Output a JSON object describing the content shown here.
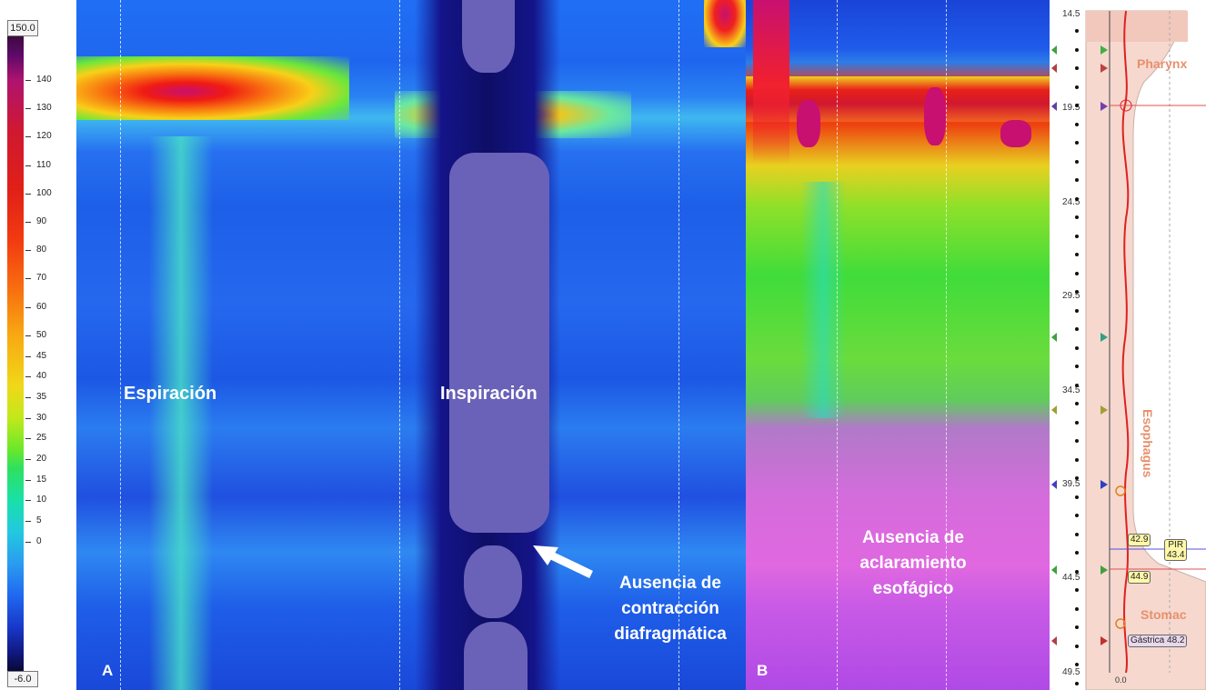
{
  "scale": {
    "max_box": "150.0",
    "min_box": "-6.0",
    "ticks": [
      "140",
      "130",
      "120",
      "110",
      "100",
      "90",
      "80",
      "70",
      "60",
      "50",
      "45",
      "40",
      "35",
      "30",
      "25",
      "20",
      "15",
      "10",
      "5",
      "0"
    ]
  },
  "panel_a": {
    "letter": "A",
    "label_expiration": "Espiración",
    "label_inspiration": "Inspiración",
    "arrow_annotation": [
      "Ausencia de",
      "contracción",
      "diafragmática"
    ]
  },
  "panel_b": {
    "letter": "B",
    "annotation": [
      "Ausencia de",
      "aclaramiento",
      "esofágico"
    ]
  },
  "anatomy": {
    "positions": [
      "14.5",
      "19.5",
      "24.5",
      "29.5",
      "34.5",
      "39.5",
      "44.5",
      "49.5"
    ],
    "pharynx": "Pharynx",
    "esophagus": "Esophagus",
    "stomach": "Stomac",
    "pir_label": "PIR",
    "pir_value": "43.4",
    "tag_upper": "42.9",
    "tag_lower": "44.9",
    "gastric_tag": "Gástrica 48.2",
    "axis_zero": "0.0"
  },
  "colors": {
    "overlay_text": "#ffffff",
    "arrow": "#ffffff",
    "pressure_line": "#e02020",
    "anatomy_fill": "#f6d8cf",
    "region_label": "#e8906c"
  }
}
